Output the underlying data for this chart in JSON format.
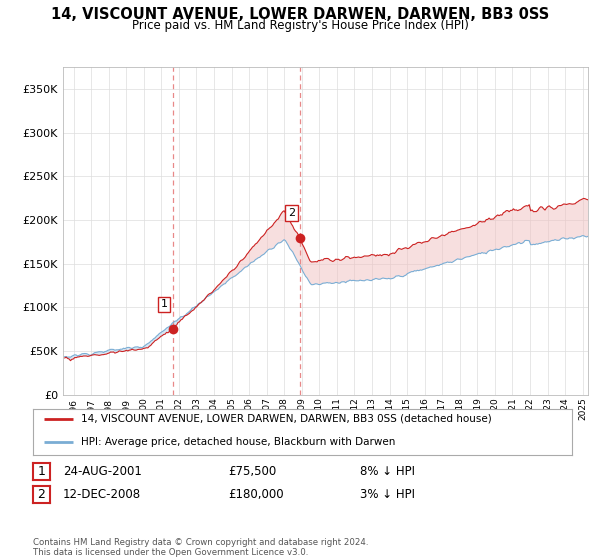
{
  "title": "14, VISCOUNT AVENUE, LOWER DARWEN, DARWEN, BB3 0SS",
  "subtitle": "Price paid vs. HM Land Registry's House Price Index (HPI)",
  "ytick_values": [
    0,
    50000,
    100000,
    150000,
    200000,
    250000,
    300000,
    350000
  ],
  "ylim": [
    0,
    375000
  ],
  "hpi_color": "#7aadd4",
  "hpi_fill_color": "#c8dff0",
  "price_color": "#cc2222",
  "vline_color": "#e88888",
  "sale1_x": 2001.65,
  "sale1_price": 75500,
  "sale2_x": 2008.92,
  "sale2_price": 180000,
  "legend_line1": "14, VISCOUNT AVENUE, LOWER DARWEN, DARWEN, BB3 0SS (detached house)",
  "legend_line2": "HPI: Average price, detached house, Blackburn with Darwen",
  "table_row1": [
    "1",
    "24-AUG-2001",
    "£75,500",
    "8% ↓ HPI"
  ],
  "table_row2": [
    "2",
    "12-DEC-2008",
    "£180,000",
    "3% ↓ HPI"
  ],
  "footnote": "Contains HM Land Registry data © Crown copyright and database right 2024.\nThis data is licensed under the Open Government Licence v3.0.",
  "background_color": "#ffffff",
  "grid_color": "#dddddd",
  "xmin": 1995.4,
  "xmax": 2025.3
}
